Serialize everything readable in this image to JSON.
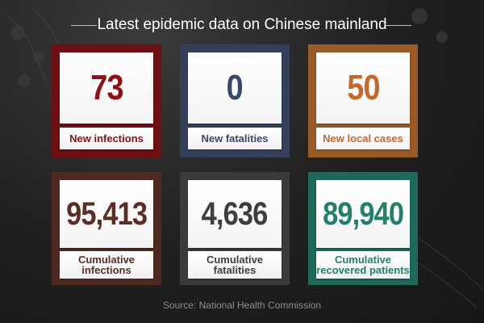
{
  "title": "Latest epidemic data on Chinese mainland",
  "source": "Source: National Health Commission",
  "cards": [
    {
      "value": "73",
      "label": "New infections",
      "frame_color": "#6e0f12",
      "text_color": "#8e1014"
    },
    {
      "value": "0",
      "label": "New fatalities",
      "frame_color": "#34405a",
      "text_color": "#3a4868"
    },
    {
      "value": "50",
      "label": "New local cases",
      "frame_color": "#9a5a26",
      "text_color": "#c5692a"
    },
    {
      "value": "95,413",
      "label": "Cumulative infections",
      "frame_color": "#4e2a22",
      "text_color": "#5a2e25"
    },
    {
      "value": "4,636",
      "label": "Cumulative fatalities",
      "frame_color": "#3a3a3a",
      "text_color": "#3e3e3e"
    },
    {
      "value": "89,940",
      "label": "Cumulative recovered patients",
      "frame_color": "#1c6a5a",
      "text_color": "#23806a"
    }
  ]
}
